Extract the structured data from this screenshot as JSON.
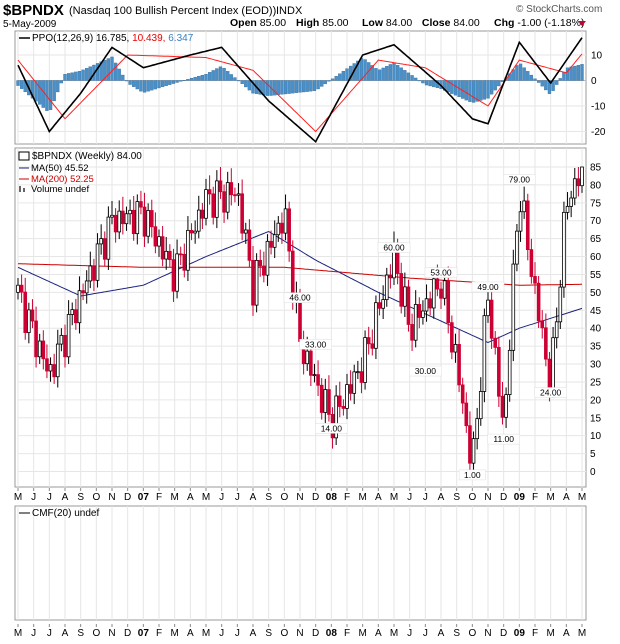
{
  "header": {
    "symbol": "$BPNDX",
    "name": "(Nasdaq 100 Bullish Percent Index (EOD))",
    "exchange": "INDX",
    "watermark": "© StockCharts.com",
    "date": "5-May-2009",
    "quote": [
      {
        "label": "Open",
        "value": "85.00"
      },
      {
        "label": "High",
        "value": "85.00"
      },
      {
        "label": "Low",
        "value": "84.00"
      },
      {
        "label": "Close",
        "value": "84.00"
      },
      {
        "label": "Chg",
        "value": "-1.00 (-1.18%)"
      }
    ],
    "colors": {
      "up": "#000000",
      "down": "#cc0033",
      "ppo_hist": "#4a90c8",
      "ma50": "#1a237e",
      "ma200": "#cc0000",
      "ppo_signal": "#ff2020"
    }
  },
  "ppo_panel": {
    "name": "PPO(12,26,9)",
    "v1": "16.785,",
    "v2": "10.439,",
    "v3": "6.347",
    "ticks": [
      "10",
      "0",
      "-10",
      "-20"
    ],
    "tick_values": [
      10,
      0,
      -10,
      -20
    ]
  },
  "price_panel": {
    "title": "$BPNDX (Weekly) 84.00",
    "ma50": "MA(50) 45.52",
    "ma200": "MA(200) 52.25",
    "volume": "Volume undef",
    "ticks": [
      "85",
      "80",
      "75",
      "70",
      "65",
      "60",
      "55",
      "50",
      "45",
      "40",
      "35",
      "30",
      "25",
      "20",
      "15",
      "10",
      "5",
      "0"
    ],
    "tick_values": [
      85,
      80,
      75,
      70,
      65,
      60,
      55,
      50,
      45,
      40,
      35,
      30,
      25,
      20,
      15,
      10,
      5,
      0
    ],
    "annotations": [
      "46.00",
      "33.00",
      "14.00",
      "60.00",
      "53.00",
      "30.00",
      "49.00",
      "1.00",
      "11.00",
      "79.00",
      "24.00"
    ]
  },
  "cmf_panel": {
    "label": "CMF(20) undef"
  },
  "x_axis": {
    "labels": [
      "M",
      "J",
      "J",
      "A",
      "S",
      "O",
      "N",
      "D",
      "07",
      "F",
      "M",
      "A",
      "M",
      "J",
      "J",
      "A",
      "S",
      "O",
      "N",
      "D",
      "08",
      "F",
      "M",
      "A",
      "M",
      "J",
      "J",
      "A",
      "S",
      "O",
      "N",
      "D",
      "09",
      "F",
      "M",
      "A",
      "M"
    ]
  },
  "chart_data": {
    "type": "candlestick",
    "period": "weekly",
    "x_range": [
      "2006-05",
      "2009-05"
    ],
    "price_ylim": [
      0,
      85
    ],
    "ppo_ylim": [
      -25,
      18
    ],
    "price_points": [
      {
        "date": "2006-05",
        "close": 50
      },
      {
        "date": "2006-07",
        "close": 27
      },
      {
        "date": "2006-09",
        "close": 49
      },
      {
        "date": "2006-11",
        "close": 70
      },
      {
        "date": "2007-01",
        "close": 72
      },
      {
        "date": "2007-03",
        "close": 55
      },
      {
        "date": "2007-05",
        "close": 76
      },
      {
        "date": "2007-07",
        "close": 78
      },
      {
        "date": "2007-08",
        "close": 52
      },
      {
        "date": "2007-10",
        "close": 72
      },
      {
        "date": "2007-11",
        "close": 36
      },
      {
        "date": "2008-01",
        "close": 14
      },
      {
        "date": "2008-03",
        "close": 30
      },
      {
        "date": "2008-05",
        "close": 60
      },
      {
        "date": "2008-06",
        "close": 40
      },
      {
        "date": "2008-08",
        "close": 53
      },
      {
        "date": "2008-09",
        "close": 30
      },
      {
        "date": "2008-10",
        "close": 1
      },
      {
        "date": "2008-11",
        "close": 49
      },
      {
        "date": "2008-12",
        "close": 11
      },
      {
        "date": "2009-01",
        "close": 79
      },
      {
        "date": "2009-02",
        "close": 50
      },
      {
        "date": "2009-03",
        "close": 24
      },
      {
        "date": "2009-04",
        "close": 75
      },
      {
        "date": "2009-05",
        "close": 84
      }
    ],
    "ma50_points": [
      {
        "date": "2006-05",
        "value": 57
      },
      {
        "date": "2006-09",
        "value": 49
      },
      {
        "date": "2007-01",
        "value": 52
      },
      {
        "date": "2007-05",
        "value": 60
      },
      {
        "date": "2007-09",
        "value": 67
      },
      {
        "date": "2007-12",
        "value": 59
      },
      {
        "date": "2008-04",
        "value": 50
      },
      {
        "date": "2008-08",
        "value": 42
      },
      {
        "date": "2008-11",
        "value": 36
      },
      {
        "date": "2009-01",
        "value": 40
      },
      {
        "date": "2009-05",
        "value": 45.52
      }
    ],
    "ma200_points": [
      {
        "date": "2006-05",
        "value": 58
      },
      {
        "date": "2007-01",
        "value": 57
      },
      {
        "date": "2007-10",
        "value": 57
      },
      {
        "date": "2008-06",
        "value": 54
      },
      {
        "date": "2009-01",
        "value": 52
      },
      {
        "date": "2009-05",
        "value": 52.25
      }
    ],
    "annotations": [
      {
        "label": "46.00",
        "date": "2007-11",
        "value": 46
      },
      {
        "label": "33.00",
        "date": "2007-12",
        "value": 33
      },
      {
        "label": "14.00",
        "date": "2008-01",
        "value": 14
      },
      {
        "label": "60.00",
        "date": "2008-05",
        "value": 60
      },
      {
        "label": "53.00",
        "date": "2008-08",
        "value": 53
      },
      {
        "label": "30.00",
        "date": "2008-07",
        "value": 30
      },
      {
        "label": "49.00",
        "date": "2008-11",
        "value": 49
      },
      {
        "label": "1.00",
        "date": "2008-10",
        "value": 1
      },
      {
        "label": "11.00",
        "date": "2008-12",
        "value": 11
      },
      {
        "label": "79.00",
        "date": "2009-01",
        "value": 79
      },
      {
        "label": "24.00",
        "date": "2009-03",
        "value": 24
      }
    ],
    "ppo_line": [
      {
        "date": "2006-05",
        "value": 6
      },
      {
        "date": "2006-07",
        "value": -20
      },
      {
        "date": "2006-09",
        "value": -5
      },
      {
        "date": "2006-11",
        "value": 13
      },
      {
        "date": "2007-01",
        "value": 5
      },
      {
        "date": "2007-04",
        "value": 10
      },
      {
        "date": "2007-06",
        "value": 13
      },
      {
        "date": "2007-09",
        "value": -8
      },
      {
        "date": "2007-12",
        "value": -24
      },
      {
        "date": "2008-03",
        "value": 10
      },
      {
        "date": "2008-05",
        "value": 14
      },
      {
        "date": "2008-08",
        "value": -2
      },
      {
        "date": "2008-10",
        "value": -15
      },
      {
        "date": "2008-11",
        "value": -17
      },
      {
        "date": "2009-01",
        "value": 15
      },
      {
        "date": "2009-03",
        "value": -1
      },
      {
        "date": "2009-05",
        "value": 16.785
      }
    ],
    "ppo_signal_line": [
      {
        "date": "2006-05",
        "value": 8
      },
      {
        "date": "2006-08",
        "value": -15
      },
      {
        "date": "2006-12",
        "value": 10
      },
      {
        "date": "2007-05",
        "value": 9
      },
      {
        "date": "2007-08",
        "value": 4
      },
      {
        "date": "2007-12",
        "value": -20
      },
      {
        "date": "2008-04",
        "value": 8
      },
      {
        "date": "2008-07",
        "value": 5
      },
      {
        "date": "2008-11",
        "value": -10
      },
      {
        "date": "2009-01",
        "value": 8
      },
      {
        "date": "2009-04",
        "value": 3
      },
      {
        "date": "2009-05",
        "value": 10.439
      }
    ]
  }
}
